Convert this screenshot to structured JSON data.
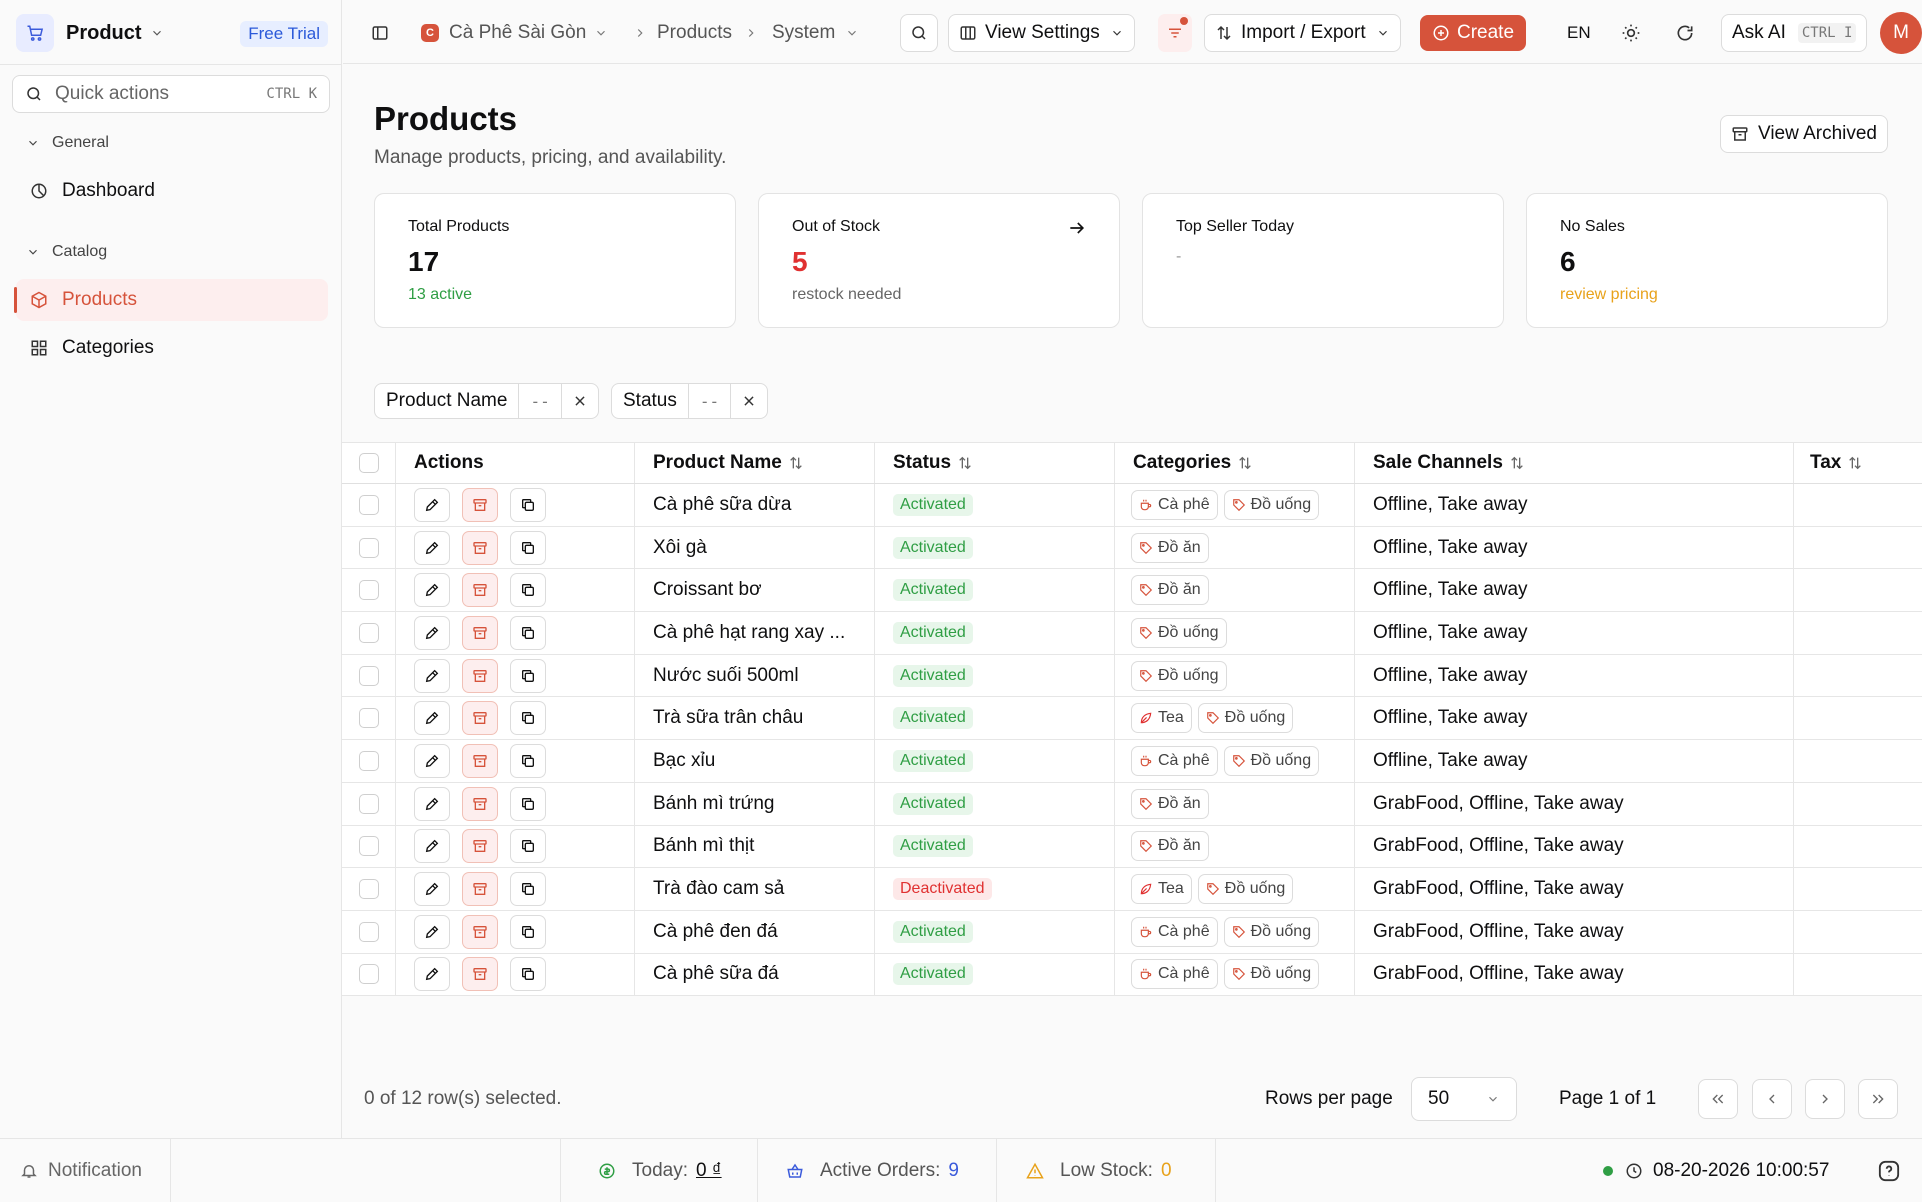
{
  "app": {
    "name": "Product",
    "trial_badge": "Free Trial",
    "quick_actions": "Quick actions",
    "quick_actions_kbd": "CTRL K"
  },
  "sidebar": {
    "groups": [
      {
        "label": "General",
        "items": [
          {
            "label": "Dashboard",
            "icon": "chart-pie-icon",
            "active": false
          }
        ]
      },
      {
        "label": "Catalog",
        "items": [
          {
            "label": "Products",
            "icon": "box-icon",
            "active": true
          },
          {
            "label": "Categories",
            "icon": "grid-icon",
            "active": false
          }
        ]
      }
    ]
  },
  "topbar": {
    "shop_initial": "C",
    "shop": "Cà Phê Sài Gòn",
    "crumb_products": "Products",
    "crumb_system": "System",
    "view_settings": "View Settings",
    "import_export": "Import / Export",
    "create": "Create",
    "lang": "EN",
    "ask_ai": "Ask AI",
    "ask_ai_kbd": "CTRL I",
    "avatar": "M"
  },
  "page": {
    "title": "Products",
    "subtitle": "Manage products, pricing, and availability.",
    "view_archived": "View Archived"
  },
  "cards": [
    {
      "title": "Total Products",
      "value": "17",
      "sub": "13 active",
      "value_color": "#0f0f10",
      "sub_color": "#2f9e44"
    },
    {
      "title": "Out of Stock",
      "value": "5",
      "sub": "restock needed",
      "value_color": "#e03131",
      "sub_color": "#666666"
    },
    {
      "title": "Top Seller Today",
      "value": "",
      "sub": "-",
      "value_color": "#0f0f10",
      "sub_color": "#999999"
    },
    {
      "title": "No Sales",
      "value": "6",
      "sub": "review pricing",
      "value_color": "#0f0f10",
      "sub_color": "#e8a21b"
    }
  ],
  "filters": [
    {
      "label": "Product Name",
      "value": "--"
    },
    {
      "label": "Status",
      "value": "--"
    }
  ],
  "table": {
    "columns": [
      "Actions",
      "Product Name",
      "Status",
      "Categories",
      "Sale Channels",
      "Tax"
    ],
    "rows": [
      {
        "name": "Cà phê sữa dừa",
        "status": "Activated",
        "categories": [
          {
            "icon": "coffee",
            "label": "Cà phê"
          },
          {
            "icon": "tag",
            "label": "Đồ uống"
          }
        ],
        "channels": "Offline, Take away"
      },
      {
        "name": "Xôi gà",
        "status": "Activated",
        "categories": [
          {
            "icon": "tag",
            "label": "Đồ ăn"
          }
        ],
        "channels": "Offline, Take away"
      },
      {
        "name": "Croissant bơ",
        "status": "Activated",
        "categories": [
          {
            "icon": "tag",
            "label": "Đồ ăn"
          }
        ],
        "channels": "Offline, Take away"
      },
      {
        "name": "Cà phê hạt rang xay ...",
        "status": "Activated",
        "categories": [
          {
            "icon": "tag",
            "label": "Đồ uống"
          }
        ],
        "channels": "Offline, Take away"
      },
      {
        "name": "Nước suối 500ml",
        "status": "Activated",
        "categories": [
          {
            "icon": "tag",
            "label": "Đồ uống"
          }
        ],
        "channels": "Offline, Take away"
      },
      {
        "name": "Trà sữa trân châu",
        "status": "Activated",
        "categories": [
          {
            "icon": "leaf",
            "label": "Tea"
          },
          {
            "icon": "tag",
            "label": "Đồ uống"
          }
        ],
        "channels": "Offline, Take away"
      },
      {
        "name": "Bạc xỉu",
        "status": "Activated",
        "categories": [
          {
            "icon": "coffee",
            "label": "Cà phê"
          },
          {
            "icon": "tag",
            "label": "Đồ uống"
          }
        ],
        "channels": "Offline, Take away"
      },
      {
        "name": "Bánh mì trứng",
        "status": "Activated",
        "categories": [
          {
            "icon": "tag",
            "label": "Đồ ăn"
          }
        ],
        "channels": "GrabFood, Offline, Take away"
      },
      {
        "name": "Bánh mì thịt",
        "status": "Activated",
        "categories": [
          {
            "icon": "tag",
            "label": "Đồ ăn"
          }
        ],
        "channels": "GrabFood, Offline, Take away"
      },
      {
        "name": "Trà đào cam sả",
        "status": "Deactivated",
        "categories": [
          {
            "icon": "leaf",
            "label": "Tea"
          },
          {
            "icon": "tag",
            "label": "Đồ uống"
          }
        ],
        "channels": "GrabFood, Offline, Take away"
      },
      {
        "name": "Cà phê đen đá",
        "status": "Activated",
        "categories": [
          {
            "icon": "coffee",
            "label": "Cà phê"
          },
          {
            "icon": "tag",
            "label": "Đồ uống"
          }
        ],
        "channels": "GrabFood, Offline, Take away"
      },
      {
        "name": "Cà phê sữa đá",
        "status": "Activated",
        "categories": [
          {
            "icon": "coffee",
            "label": "Cà phê"
          },
          {
            "icon": "tag",
            "label": "Đồ uống"
          }
        ],
        "channels": "GrabFood, Offline, Take away"
      }
    ]
  },
  "footer": {
    "selected": "0 of 12 row(s) selected.",
    "rows_per_page_label": "Rows per page",
    "rows_per_page": "50",
    "page": "Page 1 of 1"
  },
  "statusbar": {
    "notification": "Notification",
    "today_label": "Today:",
    "today_value": "0 ₫",
    "orders_label": "Active Orders:",
    "orders_value": "9",
    "stock_label": "Low Stock:",
    "stock_value": "0",
    "datetime": "08-20-2026 10:00:57"
  },
  "colors": {
    "accent": "#d6533b",
    "active_green": "#2f9e44",
    "danger": "#e03131",
    "warning": "#e8a21b",
    "link_blue": "#2b59d9"
  }
}
